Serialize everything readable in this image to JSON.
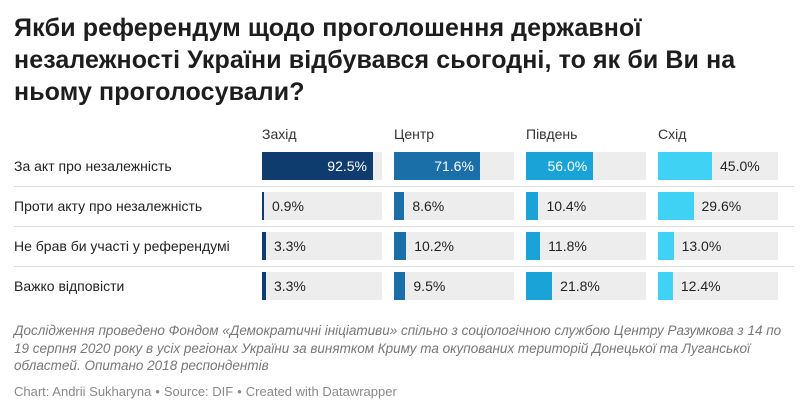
{
  "title": "Якби референдум щодо проголошення державної незалежності України відбувався сьогодні, то як би Ви на ньому проголосували?",
  "notes": "Дослідження проведено Фондом «Демократичні ініціативи» спільно з соціологічною службою Центру Разумкова з 14 по 19 серпня 2020 року в усіх регіонах України за винятком Криму та окупованих територій Донецької та Луганської областей. Опитано 2018 респондентів",
  "credit": {
    "chart": "Chart: Andrii Sukharyna",
    "source": "Source: DIF",
    "created": "Created with Datawrapper",
    "separator": "•"
  },
  "chart_data": {
    "type": "table",
    "categories": [
      "За акт про незалежність",
      "Проти акту про незалежність",
      "Не брав би участі у референдумі",
      "Важко відповісти"
    ],
    "series": [
      {
        "name": "Захід",
        "color": "#0f3c6e",
        "values": [
          92.5,
          0.9,
          3.3,
          3.3
        ]
      },
      {
        "name": "Центр",
        "color": "#1b6fa8",
        "values": [
          71.6,
          8.6,
          10.2,
          9.5
        ]
      },
      {
        "name": "Південь",
        "color": "#1aa3d6",
        "values": [
          56.0,
          10.4,
          11.8,
          21.8
        ]
      },
      {
        "name": "Схід",
        "color": "#3fd2f5",
        "values": [
          45.0,
          29.6,
          13.0,
          12.4
        ]
      }
    ],
    "value_suffix": "%",
    "value_max": 100
  }
}
